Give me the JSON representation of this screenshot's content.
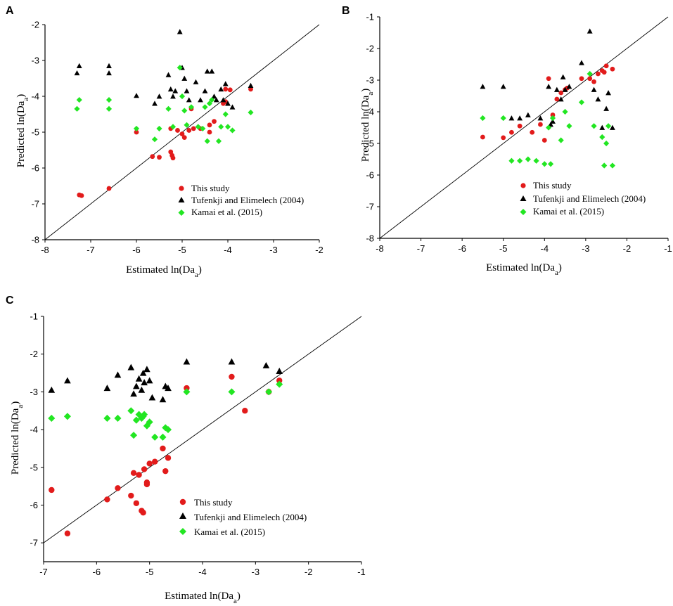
{
  "marker_colors": {
    "this_study": "#e21b1b",
    "tufenkji": "#000000",
    "kamai": "#22e622"
  },
  "chart_data": [
    {
      "panel_label": "A",
      "type": "scatter",
      "xlabel": "Estimated ln(Da",
      "xlabel_sub": "a",
      "xlabel_close": ")",
      "ylabel": "Predicted ln(Da",
      "ylabel_sub": "a",
      "ylabel_close": ")",
      "xlim": [
        -8,
        -2
      ],
      "ylim": [
        -8,
        -2
      ],
      "xticks": [
        "-8",
        "-7",
        "-6",
        "-5",
        "-4",
        "-3",
        "-2"
      ],
      "yticks": [
        "-8",
        "-7",
        "-6",
        "-5",
        "-4",
        "-3",
        "-2"
      ],
      "reference_line": "1:1",
      "legend_position": "lower-right",
      "series": [
        {
          "name": "This study",
          "marker": "circle",
          "color": "#e21b1b",
          "points": [
            [
              -7.25,
              -6.75
            ],
            [
              -7.2,
              -6.77
            ],
            [
              -6.6,
              -6.57
            ],
            [
              -6.0,
              -5.0
            ],
            [
              -5.65,
              -5.68
            ],
            [
              -5.5,
              -5.7
            ],
            [
              -5.25,
              -5.55
            ],
            [
              -5.22,
              -5.65
            ],
            [
              -5.2,
              -5.72
            ],
            [
              -5.25,
              -4.9
            ],
            [
              -5.1,
              -4.95
            ],
            [
              -5.0,
              -5.05
            ],
            [
              -4.95,
              -5.15
            ],
            [
              -4.85,
              -4.95
            ],
            [
              -4.75,
              -4.9
            ],
            [
              -4.6,
              -4.9
            ],
            [
              -4.4,
              -4.8
            ],
            [
              -4.4,
              -5.0
            ],
            [
              -4.3,
              -4.7
            ],
            [
              -4.8,
              -4.35
            ],
            [
              -4.1,
              -4.2
            ],
            [
              -4.05,
              -4.15
            ],
            [
              -4.05,
              -3.8
            ],
            [
              -3.95,
              -3.82
            ],
            [
              -3.5,
              -3.8
            ]
          ]
        },
        {
          "name": "Tufenkji and Elimelech (2004)",
          "marker": "triangle",
          "color": "#000000",
          "points": [
            [
              -7.3,
              -3.35
            ],
            [
              -7.25,
              -3.15
            ],
            [
              -6.6,
              -3.35
            ],
            [
              -6.6,
              -3.15
            ],
            [
              -6.0,
              -3.98
            ],
            [
              -5.6,
              -4.2
            ],
            [
              -5.5,
              -4.0
            ],
            [
              -5.3,
              -3.4
            ],
            [
              -5.25,
              -3.8
            ],
            [
              -5.2,
              -4.0
            ],
            [
              -5.15,
              -3.85
            ],
            [
              -5.05,
              -2.2
            ],
            [
              -5.0,
              -3.2
            ],
            [
              -4.95,
              -3.5
            ],
            [
              -4.9,
              -3.85
            ],
            [
              -4.85,
              -4.1
            ],
            [
              -4.7,
              -3.6
            ],
            [
              -4.6,
              -4.1
            ],
            [
              -4.5,
              -3.85
            ],
            [
              -4.45,
              -3.3
            ],
            [
              -4.35,
              -3.3
            ],
            [
              -4.3,
              -4.0
            ],
            [
              -4.25,
              -4.1
            ],
            [
              -4.15,
              -3.8
            ],
            [
              -4.1,
              -4.1
            ],
            [
              -4.05,
              -3.65
            ],
            [
              -4.0,
              -4.2
            ],
            [
              -3.9,
              -4.3
            ],
            [
              -3.5,
              -3.7
            ]
          ]
        },
        {
          "name": "Kamai et al. (2015)",
          "marker": "diamond",
          "color": "#22e622",
          "points": [
            [
              -7.3,
              -4.35
            ],
            [
              -7.25,
              -4.1
            ],
            [
              -6.6,
              -4.35
            ],
            [
              -6.6,
              -4.1
            ],
            [
              -6.0,
              -4.9
            ],
            [
              -5.6,
              -5.2
            ],
            [
              -5.5,
              -4.9
            ],
            [
              -5.3,
              -4.35
            ],
            [
              -5.2,
              -4.85
            ],
            [
              -5.05,
              -3.2
            ],
            [
              -5.0,
              -4.0
            ],
            [
              -4.95,
              -4.4
            ],
            [
              -4.9,
              -4.8
            ],
            [
              -4.8,
              -4.3
            ],
            [
              -4.65,
              -4.85
            ],
            [
              -4.55,
              -4.9
            ],
            [
              -4.5,
              -4.3
            ],
            [
              -4.45,
              -5.25
            ],
            [
              -4.4,
              -4.2
            ],
            [
              -4.35,
              -4.1
            ],
            [
              -4.2,
              -5.25
            ],
            [
              -4.15,
              -4.85
            ],
            [
              -4.05,
              -4.5
            ],
            [
              -4.0,
              -4.85
            ],
            [
              -3.9,
              -4.95
            ],
            [
              -3.5,
              -4.45
            ]
          ]
        }
      ]
    },
    {
      "panel_label": "B",
      "type": "scatter",
      "xlabel": "Estimated ln(Da",
      "xlabel_sub": "a",
      "xlabel_close": ")",
      "ylabel": "Predicted ln(Da",
      "ylabel_sub": "a",
      "ylabel_close": ")",
      "xlim": [
        -8,
        -1
      ],
      "ylim": [
        -8,
        -1
      ],
      "xticks": [
        "-8",
        "-7",
        "-6",
        "-5",
        "-4",
        "-3",
        "-2",
        "-1"
      ],
      "yticks": [
        "-8",
        "-7",
        "-6",
        "-5",
        "-4",
        "-3",
        "-2",
        "-1"
      ],
      "reference_line": "1:1",
      "legend_position": "lower-right",
      "series": [
        {
          "name": "This study",
          "marker": "circle",
          "color": "#e21b1b",
          "points": [
            [
              -5.5,
              -4.8
            ],
            [
              -5.0,
              -4.82
            ],
            [
              -4.8,
              -4.65
            ],
            [
              -4.6,
              -4.45
            ],
            [
              -4.3,
              -4.65
            ],
            [
              -4.1,
              -4.4
            ],
            [
              -4.0,
              -4.9
            ],
            [
              -3.9,
              -2.95
            ],
            [
              -3.8,
              -4.1
            ],
            [
              -3.7,
              -3.6
            ],
            [
              -3.6,
              -3.4
            ],
            [
              -3.5,
              -3.3
            ],
            [
              -3.45,
              -3.25
            ],
            [
              -3.1,
              -2.95
            ],
            [
              -2.9,
              -2.95
            ],
            [
              -2.8,
              -3.05
            ],
            [
              -2.7,
              -2.8
            ],
            [
              -2.6,
              -2.7
            ],
            [
              -2.55,
              -2.75
            ],
            [
              -2.5,
              -2.55
            ],
            [
              -2.35,
              -2.65
            ]
          ]
        },
        {
          "name": "Tufenkji and Elimelech (2004)",
          "marker": "triangle",
          "color": "#000000",
          "points": [
            [
              -5.5,
              -3.2
            ],
            [
              -5.0,
              -3.2
            ],
            [
              -4.8,
              -4.2
            ],
            [
              -4.6,
              -4.2
            ],
            [
              -4.4,
              -4.1
            ],
            [
              -4.1,
              -4.2
            ],
            [
              -3.9,
              -3.2
            ],
            [
              -3.85,
              -4.4
            ],
            [
              -3.8,
              -4.3
            ],
            [
              -3.7,
              -3.3
            ],
            [
              -3.6,
              -3.6
            ],
            [
              -3.55,
              -2.9
            ],
            [
              -3.5,
              -3.3
            ],
            [
              -3.4,
              -3.2
            ],
            [
              -3.1,
              -2.45
            ],
            [
              -2.9,
              -1.45
            ],
            [
              -2.8,
              -3.3
            ],
            [
              -2.7,
              -3.6
            ],
            [
              -2.6,
              -4.5
            ],
            [
              -2.5,
              -3.9
            ],
            [
              -2.45,
              -3.4
            ],
            [
              -2.35,
              -4.5
            ]
          ]
        },
        {
          "name": "Kamai et al. (2015)",
          "marker": "diamond",
          "color": "#22e622",
          "points": [
            [
              -5.5,
              -4.2
            ],
            [
              -5.0,
              -4.2
            ],
            [
              -4.8,
              -5.55
            ],
            [
              -4.6,
              -5.55
            ],
            [
              -4.4,
              -5.5
            ],
            [
              -4.2,
              -5.55
            ],
            [
              -4.0,
              -5.65
            ],
            [
              -3.9,
              -4.5
            ],
            [
              -3.85,
              -5.65
            ],
            [
              -3.8,
              -4.2
            ],
            [
              -3.6,
              -4.9
            ],
            [
              -3.5,
              -4.0
            ],
            [
              -3.4,
              -4.45
            ],
            [
              -3.1,
              -3.7
            ],
            [
              -2.9,
              -2.8
            ],
            [
              -2.8,
              -4.45
            ],
            [
              -2.6,
              -4.8
            ],
            [
              -2.55,
              -5.7
            ],
            [
              -2.5,
              -5.0
            ],
            [
              -2.45,
              -4.45
            ],
            [
              -2.35,
              -5.7
            ]
          ]
        }
      ]
    },
    {
      "panel_label": "C",
      "type": "scatter",
      "xlabel": "Estimated ln(Da",
      "xlabel_sub": "a",
      "xlabel_close": ")",
      "ylabel": "Predicted ln(Da",
      "ylabel_sub": "a",
      "ylabel_close": ")",
      "xlim": [
        -7,
        -1
      ],
      "ylim": [
        -7.5,
        -1
      ],
      "xticks": [
        "-7",
        "-6",
        "-5",
        "-4",
        "-3",
        "-2",
        "-1"
      ],
      "ytick_values": [
        -7,
        -6,
        -5,
        -4,
        -3,
        -2,
        -1
      ],
      "yticks": [
        "-7",
        "-6",
        "-5",
        "-4",
        "-3",
        "-2",
        "-1"
      ],
      "reference_line": "1:1",
      "legend_position": "lower-center",
      "series": [
        {
          "name": "This study",
          "marker": "circle",
          "color": "#e21b1b",
          "points": [
            [
              -6.85,
              -5.6
            ],
            [
              -6.55,
              -6.75
            ],
            [
              -5.8,
              -5.85
            ],
            [
              -5.6,
              -5.55
            ],
            [
              -5.35,
              -5.75
            ],
            [
              -5.3,
              -5.15
            ],
            [
              -5.25,
              -5.95
            ],
            [
              -5.2,
              -5.2
            ],
            [
              -5.15,
              -6.15
            ],
            [
              -5.12,
              -6.2
            ],
            [
              -5.1,
              -5.05
            ],
            [
              -5.05,
              -5.4
            ],
            [
              -5.05,
              -5.45
            ],
            [
              -5.0,
              -4.9
            ],
            [
              -4.9,
              -4.85
            ],
            [
              -4.75,
              -4.5
            ],
            [
              -4.7,
              -5.1
            ],
            [
              -4.65,
              -4.75
            ],
            [
              -4.3,
              -2.9
            ],
            [
              -3.45,
              -2.6
            ],
            [
              -3.2,
              -3.5
            ],
            [
              -2.75,
              -3.0
            ],
            [
              -2.55,
              -2.7
            ]
          ]
        },
        {
          "name": "Tufenkji and Elimelech (2004)",
          "marker": "triangle",
          "color": "#000000",
          "points": [
            [
              -6.85,
              -2.95
            ],
            [
              -6.55,
              -2.7
            ],
            [
              -5.8,
              -2.9
            ],
            [
              -5.6,
              -2.55
            ],
            [
              -5.35,
              -2.35
            ],
            [
              -5.3,
              -3.05
            ],
            [
              -5.25,
              -2.85
            ],
            [
              -5.2,
              -2.65
            ],
            [
              -5.15,
              -2.95
            ],
            [
              -5.12,
              -2.5
            ],
            [
              -5.1,
              -2.75
            ],
            [
              -5.05,
              -2.4
            ],
            [
              -5.0,
              -2.7
            ],
            [
              -4.95,
              -3.15
            ],
            [
              -4.75,
              -3.2
            ],
            [
              -4.7,
              -2.85
            ],
            [
              -4.65,
              -2.9
            ],
            [
              -4.3,
              -2.2
            ],
            [
              -3.45,
              -2.2
            ],
            [
              -2.8,
              -2.3
            ],
            [
              -2.55,
              -2.45
            ]
          ]
        },
        {
          "name": "Kamai et al. (2015)",
          "marker": "diamond",
          "color": "#22e622",
          "points": [
            [
              -6.85,
              -3.7
            ],
            [
              -6.55,
              -3.65
            ],
            [
              -5.8,
              -3.7
            ],
            [
              -5.6,
              -3.7
            ],
            [
              -5.35,
              -3.5
            ],
            [
              -5.3,
              -4.15
            ],
            [
              -5.25,
              -3.75
            ],
            [
              -5.2,
              -3.6
            ],
            [
              -5.15,
              -3.7
            ],
            [
              -5.12,
              -3.65
            ],
            [
              -5.1,
              -3.6
            ],
            [
              -5.05,
              -3.9
            ],
            [
              -5.0,
              -3.8
            ],
            [
              -4.9,
              -4.2
            ],
            [
              -4.75,
              -4.2
            ],
            [
              -4.7,
              -3.95
            ],
            [
              -4.65,
              -4.0
            ],
            [
              -4.3,
              -3.0
            ],
            [
              -3.45,
              -3.0
            ],
            [
              -2.75,
              -3.0
            ],
            [
              -2.55,
              -2.8
            ]
          ]
        }
      ]
    }
  ]
}
